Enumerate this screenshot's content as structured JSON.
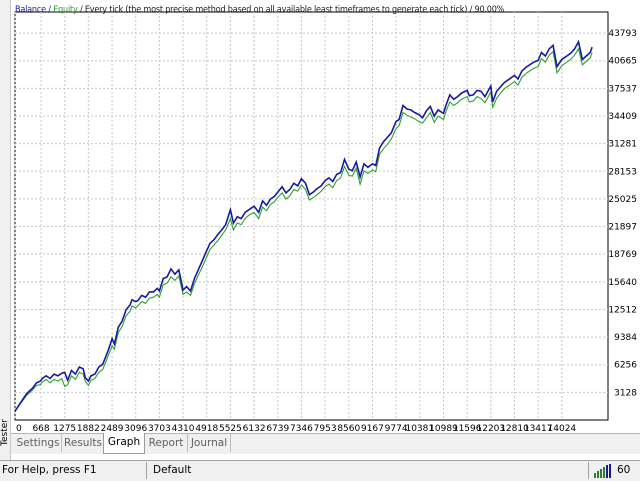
{
  "window": {
    "side_label": "Tester"
  },
  "chart": {
    "legend": {
      "balance": "Balance",
      "sep1": " / ",
      "equity": "Equity",
      "rest": " / Every tick (the most precise method based on all available least timeframes to generate each tick) / 90.00%"
    }
  },
  "colors": {
    "balance": "#1a1aa0",
    "equity": "#2fa02f",
    "grid": "#c8c8c8",
    "background": "#ffffff"
  },
  "chart_data": {
    "type": "line",
    "title": "",
    "xlabel": "",
    "ylabel": "",
    "grid": true,
    "y_ticks": [
      43793,
      40665,
      37537,
      34409,
      31281,
      28153,
      25025,
      21897,
      18769,
      15640,
      12512,
      9384,
      6256,
      3128
    ],
    "x_ticks": [
      0,
      668,
      1275,
      1882,
      2489,
      3096,
      3703,
      4310,
      4918,
      5525,
      6132,
      6739,
      7346,
      7953,
      8560,
      9167,
      9774,
      10381,
      10989,
      11596,
      12203,
      12810,
      13417,
      14024
    ],
    "xlim": [
      0,
      14900
    ],
    "ylim": [
      0,
      45500
    ],
    "series": [
      {
        "name": "Balance",
        "x": [
          0,
          150,
          300,
          450,
          550,
          650,
          700,
          800,
          900,
          1000,
          1100,
          1200,
          1275,
          1350,
          1450,
          1550,
          1650,
          1750,
          1800,
          1882,
          1950,
          2050,
          2150,
          2250,
          2350,
          2400,
          2489,
          2550,
          2650,
          2750,
          2850,
          2950,
          3000,
          3096,
          3150,
          3250,
          3350,
          3450,
          3550,
          3650,
          3703,
          3800,
          3900,
          4000,
          4100,
          4200,
          4310,
          4400,
          4500,
          4600,
          4700,
          4800,
          4918,
          5000,
          5100,
          5200,
          5300,
          5400,
          5525,
          5600,
          5700,
          5800,
          5900,
          6000,
          6132,
          6250,
          6350,
          6450,
          6550,
          6650,
          6739,
          6850,
          6950,
          7050,
          7150,
          7250,
          7346,
          7450,
          7550,
          7650,
          7750,
          7850,
          7953,
          8050,
          8150,
          8250,
          8350,
          8450,
          8560,
          8650,
          8750,
          8850,
          8950,
          9050,
          9167,
          9250,
          9350,
          9450,
          9550,
          9650,
          9774,
          9850,
          9950,
          10050,
          10150,
          10250,
          10381,
          10450,
          10550,
          10650,
          10750,
          10850,
          10989,
          11050,
          11150,
          11250,
          11350,
          11450,
          11596,
          11650,
          11750,
          11850,
          11950,
          12050,
          12203,
          12250,
          12350,
          12450,
          12550,
          12650,
          12810,
          12900,
          13000,
          13100,
          13200,
          13300,
          13417,
          13500,
          13600,
          13700,
          13800,
          13900,
          14024,
          14150,
          14250,
          14350,
          14450,
          14550,
          14650,
          14750,
          14800
        ],
        "values": [
          1000,
          2000,
          3000,
          3600,
          4200,
          4400,
          4700,
          5000,
          4700,
          5200,
          5000,
          5300,
          5400,
          4500,
          5600,
          5200,
          6000,
          5800,
          4800,
          4400,
          5000,
          5200,
          6000,
          6300,
          7400,
          8000,
          9200,
          8600,
          10500,
          11200,
          12500,
          13000,
          13600,
          13400,
          13500,
          14100,
          13900,
          14500,
          14500,
          14900,
          14600,
          16000,
          16200,
          17100,
          16500,
          17000,
          14700,
          15100,
          14600,
          16000,
          17000,
          18000,
          19200,
          20000,
          20400,
          21000,
          21500,
          22100,
          23800,
          22300,
          23000,
          22800,
          23500,
          23800,
          24200,
          23500,
          24800,
          24300,
          25000,
          25300,
          25800,
          26400,
          25700,
          26100,
          26800,
          26500,
          27300,
          26800,
          25500,
          25800,
          26200,
          26500,
          27100,
          27400,
          27000,
          27800,
          28000,
          29500,
          28400,
          28200,
          29200,
          27500,
          29000,
          28600,
          29000,
          28800,
          30800,
          31500,
          32000,
          32500,
          33800,
          34000,
          35600,
          35200,
          35100,
          34800,
          34500,
          34200,
          35000,
          35500,
          34400,
          35100,
          34700,
          35600,
          36800,
          36300,
          36600,
          37000,
          37300,
          36700,
          36800,
          37300,
          37200,
          36600,
          37800,
          36000,
          37200,
          37700,
          38200,
          38500,
          39000,
          38600,
          39500,
          39900,
          40200,
          40500,
          40700,
          41600,
          41200,
          42000,
          42400,
          40000,
          40800,
          41200,
          41500,
          42000,
          42800,
          40800,
          41200,
          41600,
          42200
        ]
      },
      {
        "name": "Equity",
        "x": [
          0,
          150,
          300,
          450,
          550,
          650,
          700,
          800,
          900,
          1000,
          1100,
          1200,
          1275,
          1350,
          1450,
          1550,
          1650,
          1750,
          1800,
          1882,
          1950,
          2050,
          2150,
          2250,
          2350,
          2400,
          2489,
          2550,
          2650,
          2750,
          2850,
          2950,
          3000,
          3096,
          3150,
          3250,
          3350,
          3450,
          3550,
          3650,
          3703,
          3800,
          3900,
          4000,
          4100,
          4200,
          4310,
          4400,
          4500,
          4600,
          4700,
          4800,
          4918,
          5000,
          5100,
          5200,
          5300,
          5400,
          5525,
          5600,
          5700,
          5800,
          5900,
          6000,
          6132,
          6250,
          6350,
          6450,
          6550,
          6650,
          6739,
          6850,
          6950,
          7050,
          7150,
          7250,
          7346,
          7450,
          7550,
          7650,
          7750,
          7850,
          7953,
          8050,
          8150,
          8250,
          8350,
          8450,
          8560,
          8650,
          8750,
          8850,
          8950,
          9050,
          9167,
          9250,
          9350,
          9450,
          9550,
          9650,
          9774,
          9850,
          9950,
          10050,
          10150,
          10250,
          10381,
          10450,
          10550,
          10650,
          10750,
          10850,
          10989,
          11050,
          11150,
          11250,
          11350,
          11450,
          11596,
          11650,
          11750,
          11850,
          11950,
          12050,
          12203,
          12250,
          12350,
          12450,
          12550,
          12650,
          12810,
          12900,
          13000,
          13100,
          13200,
          13300,
          13417,
          13500,
          13600,
          13700,
          13800,
          13900,
          14024,
          14150,
          14250,
          14350,
          14450,
          14550,
          14650,
          14750,
          14800
        ],
        "values": [
          1000,
          1900,
          2800,
          3400,
          3900,
          4000,
          4300,
          4600,
          4200,
          4600,
          4400,
          4700,
          3800,
          4000,
          5000,
          4600,
          5400,
          5200,
          4400,
          3900,
          4500,
          4700,
          5400,
          5700,
          6800,
          7400,
          8400,
          8000,
          9900,
          10600,
          11800,
          12300,
          12900,
          12700,
          12900,
          13400,
          13200,
          13800,
          13900,
          14200,
          13900,
          15300,
          15500,
          16200,
          15800,
          16300,
          14200,
          14500,
          14100,
          15400,
          16400,
          17300,
          18500,
          19300,
          19800,
          20300,
          20900,
          21500,
          22800,
          21500,
          22300,
          22100,
          22800,
          23200,
          23500,
          22800,
          24100,
          23700,
          24400,
          24700,
          25200,
          25700,
          25000,
          25400,
          26100,
          25900,
          26600,
          26100,
          24900,
          25200,
          25500,
          25900,
          26400,
          26700,
          26300,
          27100,
          27400,
          28700,
          27700,
          27600,
          28500,
          26700,
          28200,
          27900,
          28300,
          28100,
          30100,
          30700,
          31200,
          31800,
          33000,
          33300,
          34800,
          34500,
          34300,
          34100,
          33700,
          33600,
          34200,
          34800,
          33700,
          34400,
          34000,
          34900,
          36000,
          35600,
          35900,
          36300,
          36600,
          36000,
          36100,
          36600,
          36400,
          35900,
          37100,
          35400,
          36400,
          37000,
          37500,
          37800,
          38300,
          37900,
          38800,
          39200,
          39500,
          39800,
          40000,
          40900,
          40500,
          41300,
          41700,
          39300,
          40100,
          40500,
          40800,
          41300,
          42000,
          40200,
          40600,
          41000,
          41600
        ]
      }
    ]
  },
  "tabs": [
    {
      "label": "Settings",
      "active": false
    },
    {
      "label": "Results",
      "active": false
    },
    {
      "label": "Graph",
      "active": true
    },
    {
      "label": "Report",
      "active": false
    },
    {
      "label": "Journal",
      "active": false
    }
  ],
  "statusbar": {
    "help": "For Help, press F1",
    "profile": "Default",
    "connection_value": "60",
    "connection_icon": "signal-bars-icon"
  }
}
